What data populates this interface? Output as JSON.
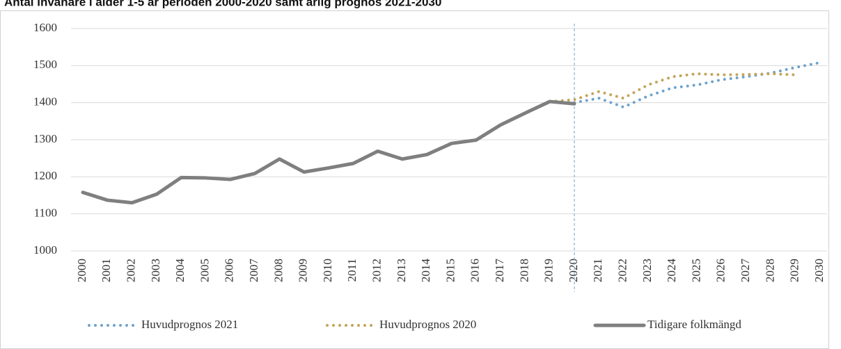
{
  "chart_data": {
    "type": "line",
    "title": "Antal invånare i ålder 1-5 år perioden 2000-2020 samt årlig prognos 2021-2030",
    "categories": [
      "2000",
      "2001",
      "2002",
      "2003",
      "2004",
      "2005",
      "2006",
      "2007",
      "2008",
      "2009",
      "2010",
      "2011",
      "2012",
      "2013",
      "2014",
      "2015",
      "2016",
      "2017",
      "2018",
      "2019",
      "2020",
      "2021",
      "2022",
      "2023",
      "2024",
      "2025",
      "2026",
      "2027",
      "2028",
      "2029",
      "2030"
    ],
    "series": [
      {
        "name": "Huvudprognos 2021",
        "color": "#6fa3cc",
        "dash": "dotted",
        "values": [
          null,
          null,
          null,
          null,
          null,
          null,
          null,
          null,
          null,
          null,
          null,
          null,
          null,
          null,
          null,
          null,
          null,
          null,
          null,
          null,
          1400,
          1412,
          1388,
          1418,
          1440,
          1448,
          1462,
          1470,
          1480,
          1495,
          1508
        ]
      },
      {
        "name": "Huvudprognos 2020",
        "color": "#c4a45a",
        "dash": "dotted",
        "values": [
          null,
          null,
          null,
          null,
          null,
          null,
          null,
          null,
          null,
          null,
          null,
          null,
          null,
          null,
          null,
          null,
          null,
          null,
          null,
          1403,
          1408,
          1430,
          1412,
          1448,
          1470,
          1478,
          1475,
          1476,
          1478,
          1475,
          null
        ]
      },
      {
        "name": "Tidigare folkmängd",
        "color": "#7f7f7f",
        "dash": "solid",
        "values": [
          1158,
          1137,
          1130,
          1153,
          1198,
          1197,
          1193,
          1209,
          1248,
          1213,
          1224,
          1236,
          1269,
          1248,
          1260,
          1290,
          1299,
          1340,
          1372,
          1403,
          1397,
          null,
          null,
          null,
          null,
          null,
          null,
          null,
          null,
          null,
          null
        ]
      }
    ],
    "ylim": [
      1000,
      1600
    ],
    "yticks": [
      1000,
      1100,
      1200,
      1300,
      1400,
      1500,
      1600
    ],
    "grid": true,
    "legend": "bottom"
  }
}
